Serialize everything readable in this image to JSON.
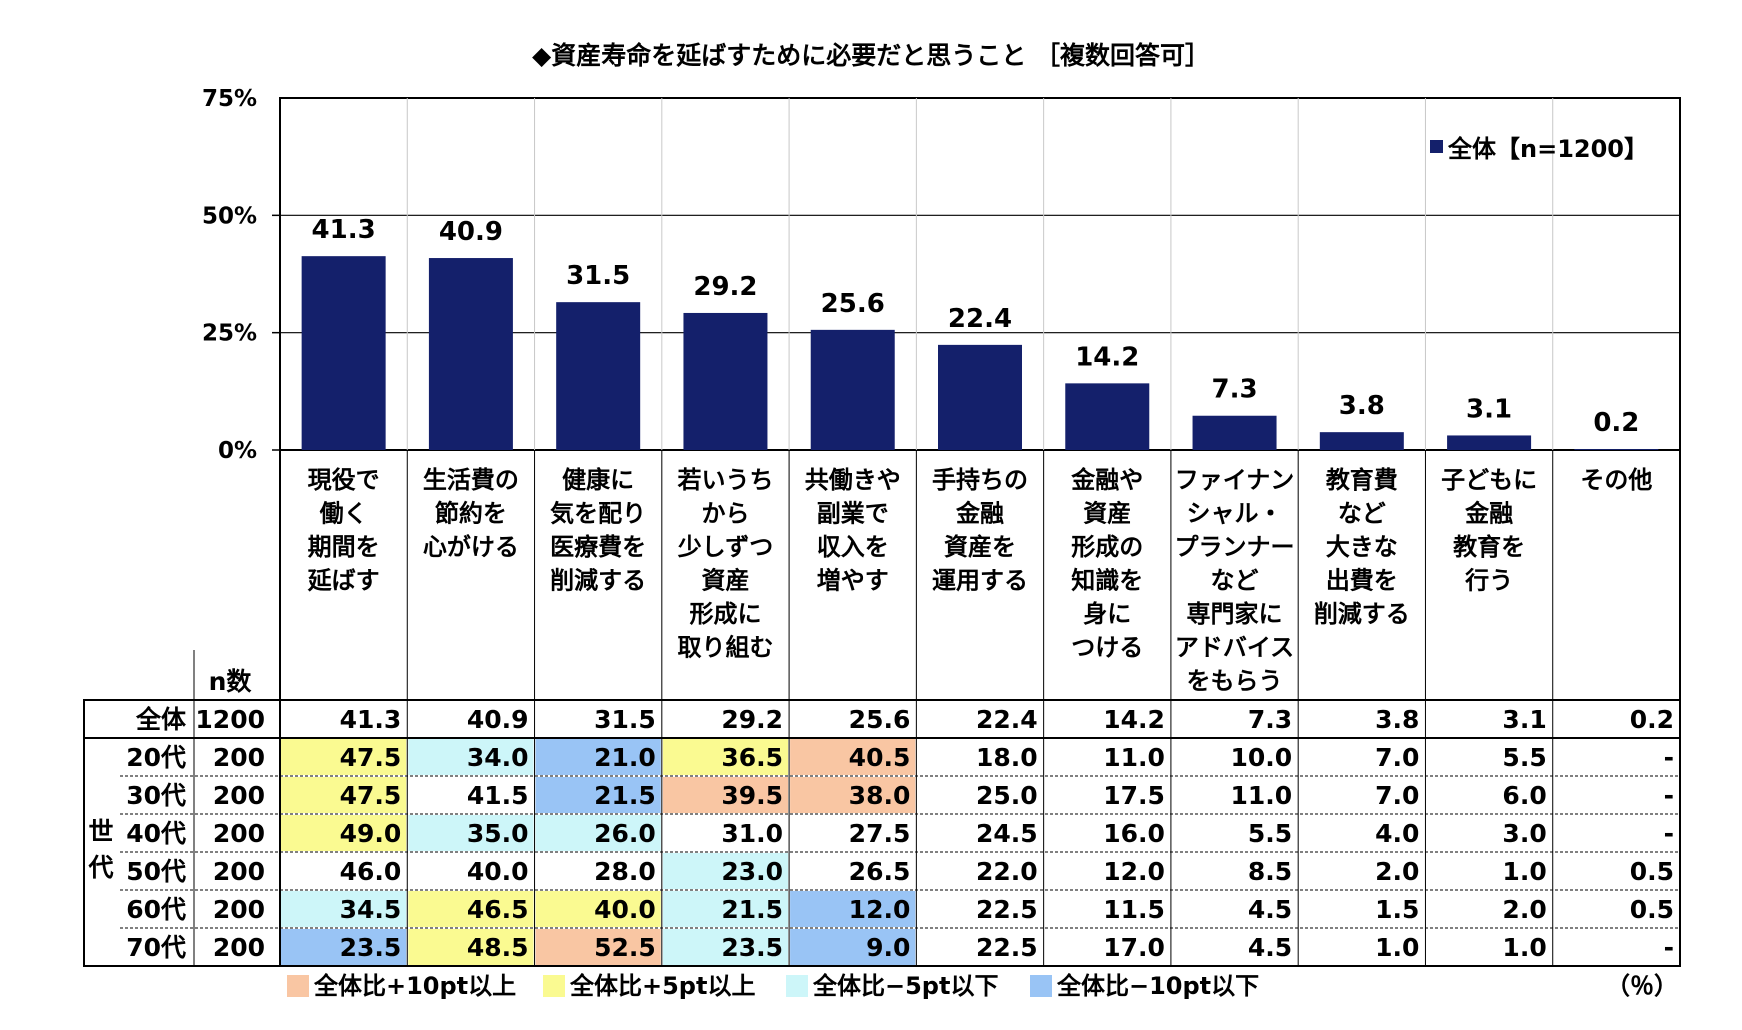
{
  "title": "◆資産寿命を延ばすために必要だと思うこと ［複数回答可］",
  "legend": "全体【n=1200】",
  "n_header": "n数",
  "group_label": "世代",
  "unit": "（％）",
  "colors": {
    "bar": "#14206b",
    "plus10": "#f9c6a3",
    "plus5": "#fafa91",
    "minus5": "#cdf6f9",
    "minus10": "#99c4f5"
  },
  "highlight_legend": [
    {
      "key": "plus10",
      "label": "全体比+10pt以上"
    },
    {
      "key": "plus5",
      "label": "全体比+5pt以上"
    },
    {
      "key": "minus5",
      "label": "全体比−5pt以下"
    },
    {
      "key": "minus10",
      "label": "全体比−10pt以下"
    }
  ],
  "chart_data": {
    "type": "bar",
    "title": "◆資産寿命を延ばすために必要だと思うこと ［複数回答可］",
    "y_ticks": [
      "75%",
      "50%",
      "25%",
      "0%"
    ],
    "ylim": [
      0,
      75
    ],
    "grid": true,
    "legend_position": "top-right",
    "categories": [
      [
        "現役で",
        "働く",
        "期間を",
        "延ばす"
      ],
      [
        "生活費の",
        "節約を",
        "心がける"
      ],
      [
        "健康に",
        "気を配り",
        "医療費を",
        "削減する"
      ],
      [
        "若いうち",
        "から",
        "少しずつ",
        "資産",
        "形成に",
        "取り組む"
      ],
      [
        "共働きや",
        "副業で",
        "収入を",
        "増やす"
      ],
      [
        "手持ちの",
        "金融",
        "資産を",
        "運用する"
      ],
      [
        "金融や",
        "資産",
        "形成の",
        "知識を",
        "身に",
        "つける"
      ],
      [
        "ファイナン",
        "シャル・",
        "プランナー",
        "など",
        "専門家に",
        "アドバイス",
        "をもらう"
      ],
      [
        "教育費",
        "など",
        "大きな",
        "出費を",
        "削減する"
      ],
      [
        "子どもに",
        "金融",
        "教育を",
        "行う"
      ],
      [
        "その他"
      ]
    ],
    "series": [
      {
        "name": "全体【n=1200】",
        "values": [
          41.3,
          40.9,
          31.5,
          29.2,
          25.6,
          22.4,
          14.2,
          7.3,
          3.8,
          3.1,
          0.2
        ]
      }
    ],
    "value_labels": [
      "41.3",
      "40.9",
      "31.5",
      "29.2",
      "25.6",
      "22.4",
      "14.2",
      "7.3",
      "3.8",
      "3.1",
      "0.2"
    ]
  },
  "table": {
    "total_row": {
      "label": "全体",
      "n": "1200",
      "values": [
        "41.3",
        "40.9",
        "31.5",
        "29.2",
        "25.6",
        "22.4",
        "14.2",
        "7.3",
        "3.8",
        "3.1",
        "0.2"
      ]
    },
    "rows": [
      {
        "label": "20代",
        "n": "200",
        "values": [
          "47.5",
          "34.0",
          "21.0",
          "36.5",
          "40.5",
          "18.0",
          "11.0",
          "10.0",
          "7.0",
          "5.5",
          "-"
        ],
        "highlights": [
          "plus5",
          "minus5",
          "minus10",
          "plus5",
          "plus10",
          "",
          "",
          "",
          "",
          "",
          ""
        ]
      },
      {
        "label": "30代",
        "n": "200",
        "values": [
          "47.5",
          "41.5",
          "21.5",
          "39.5",
          "38.0",
          "25.0",
          "17.5",
          "11.0",
          "7.0",
          "6.0",
          "-"
        ],
        "highlights": [
          "plus5",
          "",
          "minus10",
          "plus10",
          "plus10",
          "",
          "",
          "",
          "",
          "",
          ""
        ]
      },
      {
        "label": "40代",
        "n": "200",
        "values": [
          "49.0",
          "35.0",
          "26.0",
          "31.0",
          "27.5",
          "24.5",
          "16.0",
          "5.5",
          "4.0",
          "3.0",
          "-"
        ],
        "highlights": [
          "plus5",
          "minus5",
          "minus5",
          "",
          "",
          "",
          "",
          "",
          "",
          "",
          ""
        ]
      },
      {
        "label": "50代",
        "n": "200",
        "values": [
          "46.0",
          "40.0",
          "28.0",
          "23.0",
          "26.5",
          "22.0",
          "12.0",
          "8.5",
          "2.0",
          "1.0",
          "0.5"
        ],
        "highlights": [
          "",
          "",
          "",
          "minus5",
          "",
          "",
          "",
          "",
          "",
          "",
          ""
        ]
      },
      {
        "label": "60代",
        "n": "200",
        "values": [
          "34.5",
          "46.5",
          "40.0",
          "21.5",
          "12.0",
          "22.5",
          "11.5",
          "4.5",
          "1.5",
          "2.0",
          "0.5"
        ],
        "highlights": [
          "minus5",
          "plus5",
          "plus5",
          "minus5",
          "minus10",
          "",
          "",
          "",
          "",
          "",
          ""
        ]
      },
      {
        "label": "70代",
        "n": "200",
        "values": [
          "23.5",
          "48.5",
          "52.5",
          "23.5",
          "9.0",
          "22.5",
          "17.0",
          "4.5",
          "1.0",
          "1.0",
          "-"
        ],
        "highlights": [
          "minus10",
          "plus5",
          "plus10",
          "minus5",
          "minus10",
          "",
          "",
          "",
          "",
          "",
          ""
        ]
      }
    ]
  }
}
